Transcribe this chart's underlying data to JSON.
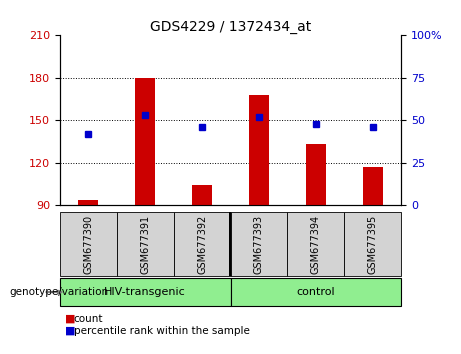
{
  "title": "GDS4229 / 1372434_at",
  "samples": [
    "GSM677390",
    "GSM677391",
    "GSM677392",
    "GSM677393",
    "GSM677394",
    "GSM677395"
  ],
  "count_values": [
    94,
    180,
    104,
    168,
    133,
    117
  ],
  "percentile_values": [
    42,
    53,
    46,
    52,
    48,
    46
  ],
  "ylim_left": [
    90,
    210
  ],
  "ylim_right": [
    0,
    100
  ],
  "yticks_left": [
    90,
    120,
    150,
    180,
    210
  ],
  "yticks_right": [
    0,
    25,
    50,
    75,
    100
  ],
  "bar_color": "#cc0000",
  "dot_color": "#0000cc",
  "group_label": "genotype/variation",
  "groups": [
    {
      "label": "HIV-transgenic",
      "start": 0,
      "end": 2
    },
    {
      "label": "control",
      "start": 3,
      "end": 5
    }
  ],
  "legend_count": "count",
  "legend_percentile": "percentile rank within the sample",
  "bar_width": 0.35,
  "title_fontsize": 10,
  "axis_fontsize": 8,
  "sample_fontsize": 7,
  "group_fontsize": 8,
  "legend_fontsize": 7.5
}
